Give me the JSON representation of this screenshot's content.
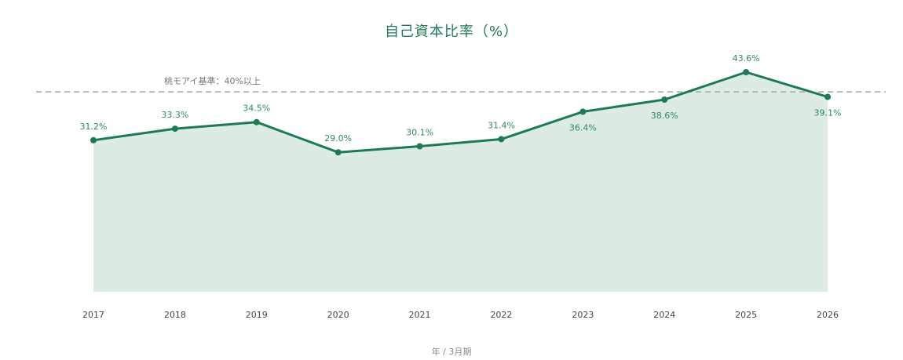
{
  "chart_data": {
    "type": "area",
    "title": "自己資本比率（%）",
    "xlabel": "年 / 3月期",
    "ylabel": "",
    "x": [
      "2017",
      "2018",
      "2019",
      "2020",
      "2021",
      "2022",
      "2023",
      "2024",
      "2025",
      "2026"
    ],
    "series": [
      {
        "values": [
          31.2,
          33.3,
          34.5,
          29.0,
          30.1,
          31.4,
          36.4,
          38.6,
          43.6,
          39.1
        ],
        "labels": [
          "31.2%",
          "33.3%",
          "34.5%",
          "29.0%",
          "30.1%",
          "31.4%",
          "36.4%",
          "38.6%",
          "43.6%",
          "39.1%"
        ]
      }
    ],
    "reference_line": {
      "value": 40,
      "label": "桃モアイ基準：40%以上",
      "style": "dashed"
    },
    "grid": false,
    "colors": {
      "line": "#1d7a54",
      "fill": "#dcece3",
      "reference": "#aaaaaa",
      "title": "#1d7a54"
    }
  }
}
